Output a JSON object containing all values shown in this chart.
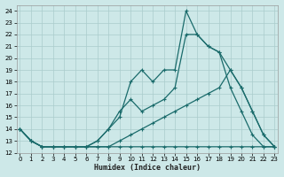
{
  "title": "",
  "xlabel": "Humidex (Indice chaleur)",
  "bg_color": "#cde8e8",
  "grid_color": "#aacccc",
  "line_color": "#1a6b6b",
  "ylim": [
    12,
    24.5
  ],
  "xlim": [
    -0.3,
    23.3
  ],
  "yticks": [
    12,
    13,
    14,
    15,
    16,
    17,
    18,
    19,
    20,
    21,
    22,
    23,
    24
  ],
  "xticks": [
    0,
    1,
    2,
    3,
    4,
    5,
    6,
    7,
    8,
    9,
    10,
    11,
    12,
    13,
    14,
    15,
    16,
    17,
    18,
    19,
    20,
    21,
    22,
    23
  ],
  "line1_x": [
    0,
    1,
    2,
    3,
    4,
    5,
    6,
    7,
    8,
    9,
    10,
    11,
    12,
    13,
    14,
    15,
    16,
    17,
    18,
    19,
    20,
    21,
    22,
    23
  ],
  "line1_y": [
    14,
    13,
    12.5,
    12.5,
    12.5,
    12.5,
    12.5,
    12.5,
    12.5,
    12.5,
    12.5,
    12.5,
    12.5,
    12.5,
    12.5,
    12.5,
    12.5,
    12.5,
    12.5,
    12.5,
    12.5,
    12.5,
    12.5,
    12.5
  ],
  "line2_x": [
    0,
    1,
    2,
    3,
    4,
    5,
    6,
    7,
    8,
    9,
    10,
    11,
    12,
    13,
    14,
    15,
    16,
    17,
    18,
    19,
    20,
    21,
    22,
    23
  ],
  "line2_y": [
    14,
    13,
    12.5,
    12.5,
    12.5,
    12.5,
    12.5,
    12.5,
    12.5,
    13,
    13.5,
    14,
    14.5,
    15,
    15.5,
    16,
    16.5,
    17,
    17.5,
    19,
    17.5,
    15.5,
    13.5,
    12.5
  ],
  "line3_x": [
    0,
    1,
    2,
    3,
    4,
    5,
    6,
    7,
    8,
    9,
    10,
    11,
    12,
    13,
    14,
    15,
    16,
    17,
    18,
    19,
    20,
    21,
    22,
    23
  ],
  "line3_y": [
    14,
    13,
    12.5,
    12.5,
    12.5,
    12.5,
    12.5,
    13,
    14,
    15.5,
    16.5,
    15.5,
    16,
    16.5,
    17.5,
    22,
    22,
    21,
    20.5,
    17.5,
    15.5,
    13.5,
    12.5,
    12.5
  ],
  "line4_x": [
    0,
    1,
    2,
    3,
    4,
    5,
    6,
    7,
    8,
    9,
    10,
    11,
    12,
    13,
    14,
    15,
    16,
    17,
    18,
    19,
    20,
    21,
    22,
    23
  ],
  "line4_y": [
    14,
    13,
    12.5,
    12.5,
    12.5,
    12.5,
    12.5,
    13,
    14,
    15,
    18,
    19,
    18,
    19,
    19,
    24,
    22,
    21,
    20.5,
    19,
    17.5,
    15.5,
    13.5,
    12.5
  ]
}
